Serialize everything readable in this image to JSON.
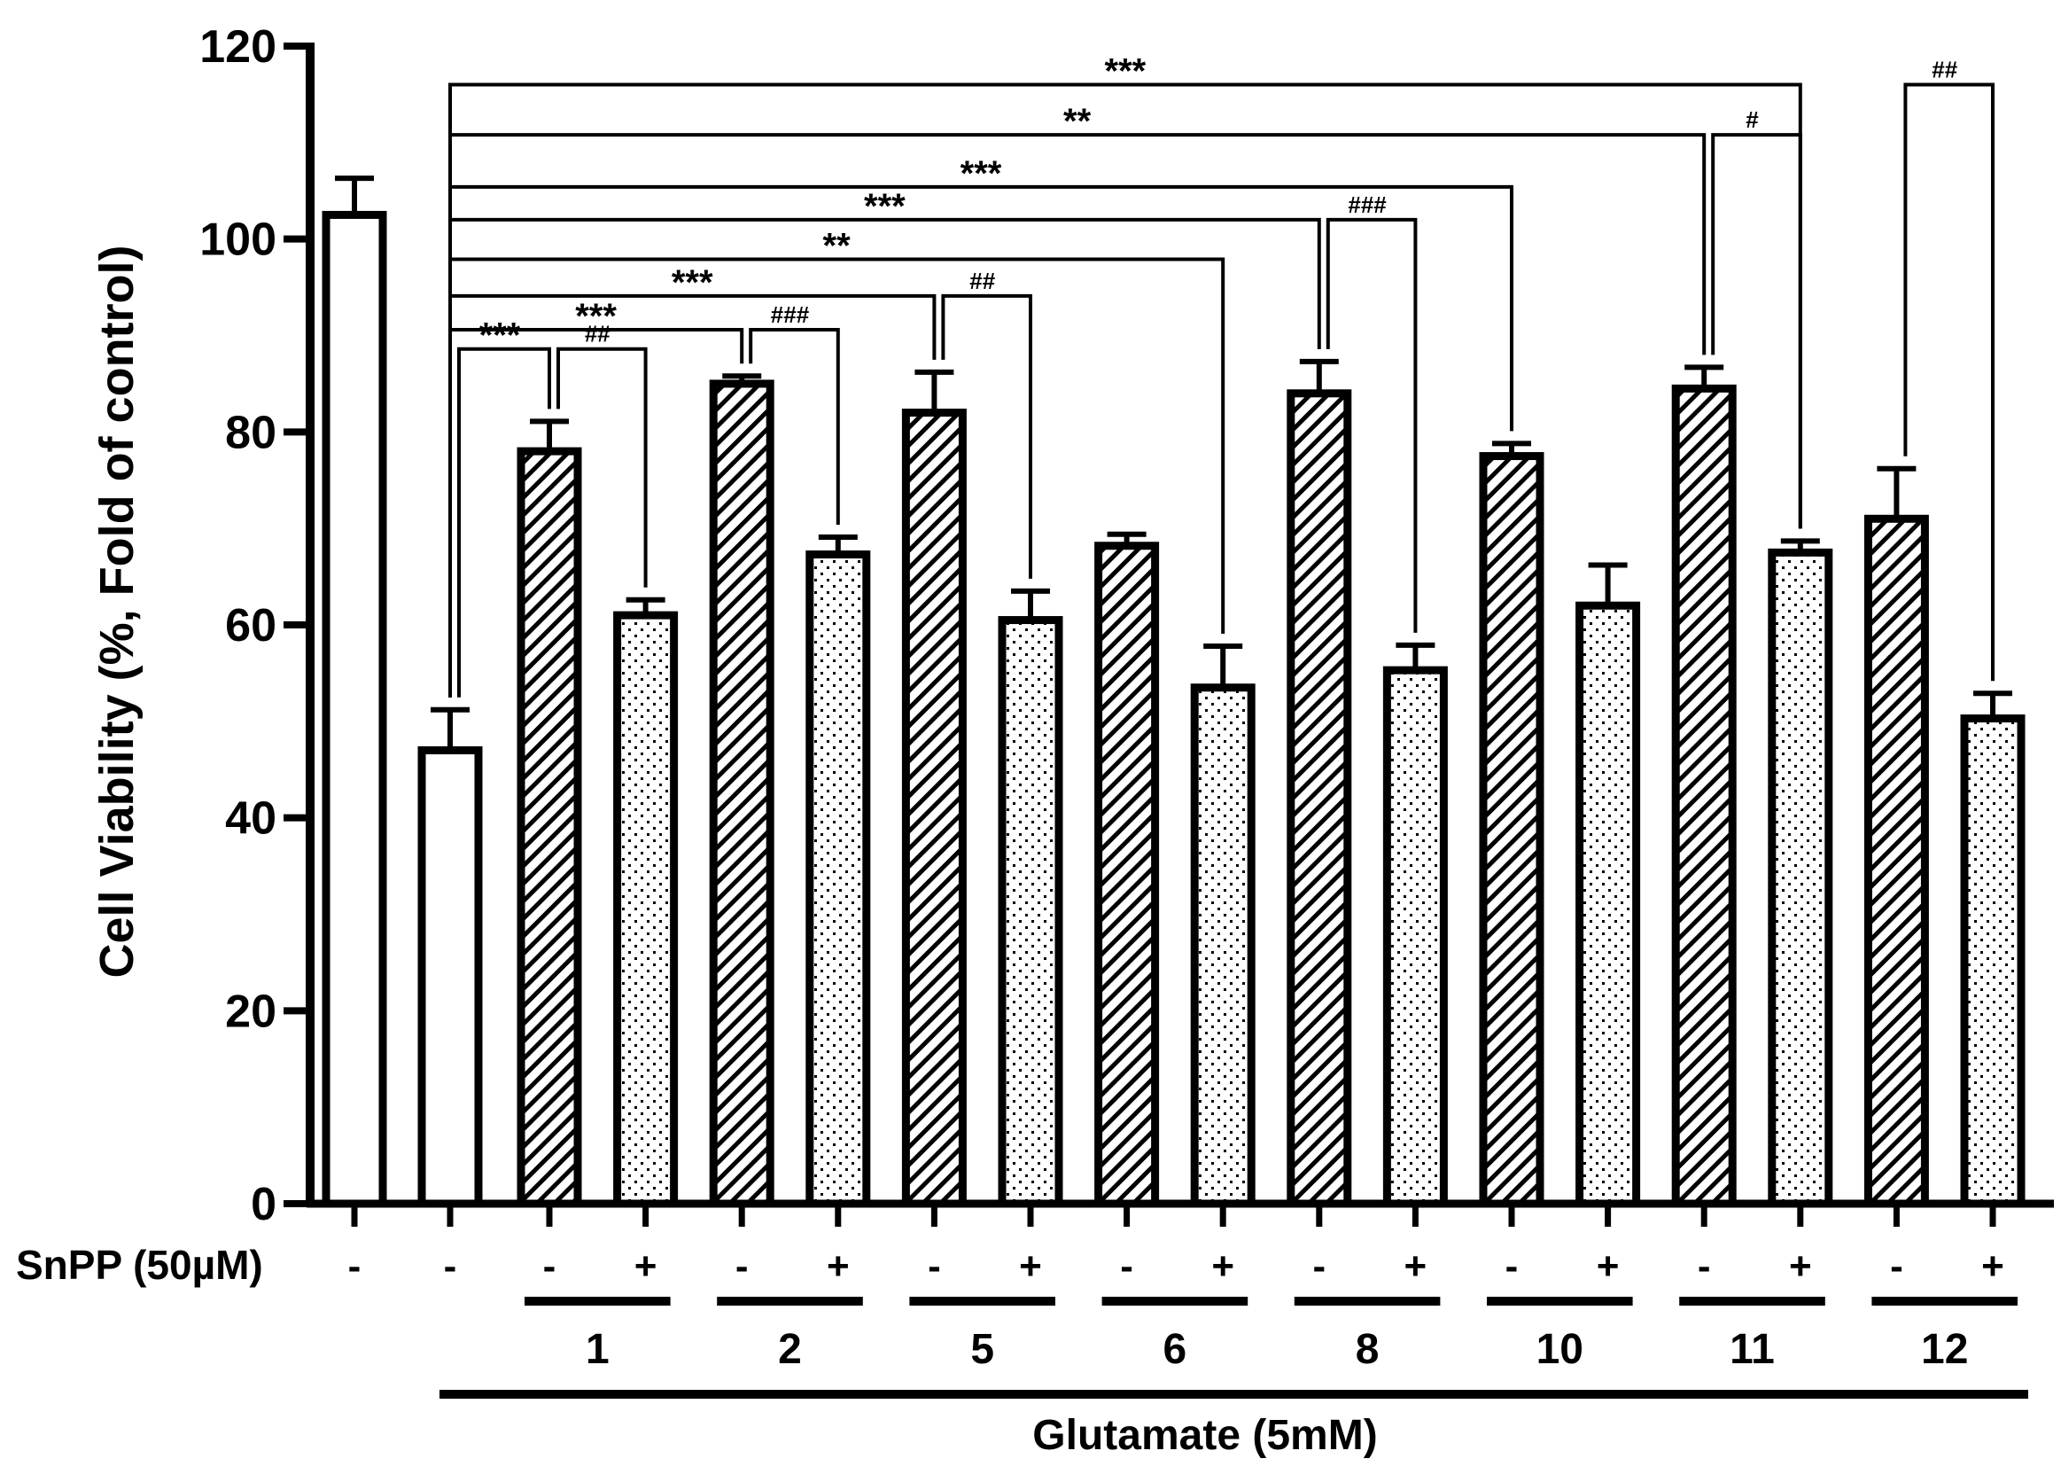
{
  "chart_data": {
    "type": "bar",
    "ylabel": "Cell Viability (%, Fold of control)",
    "ylim": [
      0,
      120
    ],
    "yticks": [
      0,
      20,
      40,
      60,
      80,
      100,
      120
    ],
    "snpp_label": "SnPP (50µM)",
    "glutamate_label": "Glutamate (5mM)",
    "compounds": [
      "1",
      "2",
      "5",
      "6",
      "8",
      "10",
      "11",
      "12"
    ],
    "bars": [
      {
        "id": "control",
        "value": 102.5,
        "error": 3.8,
        "fill": "white",
        "snpp": "-"
      },
      {
        "id": "glutamate",
        "value": 47,
        "error": 4.2,
        "fill": "white",
        "snpp": "-"
      },
      {
        "id": "c1-",
        "value": 78,
        "error": 3.1,
        "fill": "hatch",
        "snpp": "-"
      },
      {
        "id": "c1+",
        "value": 61,
        "error": 1.6,
        "fill": "dots",
        "snpp": "+"
      },
      {
        "id": "c2-",
        "value": 85,
        "error": 0.8,
        "fill": "hatch",
        "snpp": "-"
      },
      {
        "id": "c2+",
        "value": 67.3,
        "error": 1.8,
        "fill": "dots",
        "snpp": "+"
      },
      {
        "id": "c5-",
        "value": 82,
        "error": 4.2,
        "fill": "hatch",
        "snpp": "-"
      },
      {
        "id": "c5+",
        "value": 60.5,
        "error": 3.0,
        "fill": "dots",
        "snpp": "+"
      },
      {
        "id": "c6-",
        "value": 68.2,
        "error": 1.2,
        "fill": "hatch",
        "snpp": "-"
      },
      {
        "id": "c6+",
        "value": 53.5,
        "error": 4.3,
        "fill": "dots",
        "snpp": "+"
      },
      {
        "id": "c8-",
        "value": 84,
        "error": 3.3,
        "fill": "hatch",
        "snpp": "-"
      },
      {
        "id": "c8+",
        "value": 55.3,
        "error": 2.6,
        "fill": "dots",
        "snpp": "+"
      },
      {
        "id": "c10-",
        "value": 77.5,
        "error": 1.3,
        "fill": "hatch",
        "snpp": "-"
      },
      {
        "id": "c10+",
        "value": 62,
        "error": 4.2,
        "fill": "dots",
        "snpp": "+"
      },
      {
        "id": "c11-",
        "value": 84.5,
        "error": 2.2,
        "fill": "hatch",
        "snpp": "-"
      },
      {
        "id": "c11+",
        "value": 67.5,
        "error": 1.2,
        "fill": "dots",
        "snpp": "+"
      },
      {
        "id": "c12-",
        "value": 71,
        "error": 5.2,
        "fill": "hatch",
        "snpp": "-"
      },
      {
        "id": "c12+",
        "value": 50.3,
        "error": 2.6,
        "fill": "dots",
        "snpp": "+"
      }
    ],
    "brackets": [
      {
        "from": 1,
        "to": 15,
        "y": 116,
        "label": "***"
      },
      {
        "from": 16,
        "to": 17,
        "y": 116,
        "label": "##"
      },
      {
        "from": 1,
        "to": 14,
        "y": 110.8,
        "label": "**"
      },
      {
        "from": 14,
        "to": 15,
        "y": 110.8,
        "label": "#"
      },
      {
        "from": 1,
        "to": 12,
        "y": 105.4,
        "label": "***"
      },
      {
        "from": 1,
        "to": 10,
        "y": 102,
        "label": "***"
      },
      {
        "from": 10,
        "to": 11,
        "y": 102,
        "label": "###"
      },
      {
        "from": 1,
        "to": 9,
        "y": 97.9,
        "label": "**"
      },
      {
        "from": 1,
        "to": 6,
        "y": 94.1,
        "label": "***"
      },
      {
        "from": 6,
        "to": 7,
        "y": 94.1,
        "label": "##"
      },
      {
        "from": 1,
        "to": 4,
        "y": 90.6,
        "label": "***"
      },
      {
        "from": 4,
        "to": 5,
        "y": 90.6,
        "label": "###"
      },
      {
        "from": 1,
        "to": 2,
        "y": 88.6,
        "label": "***"
      },
      {
        "from": 2,
        "to": 3,
        "y": 88.6,
        "label": "##"
      }
    ]
  }
}
